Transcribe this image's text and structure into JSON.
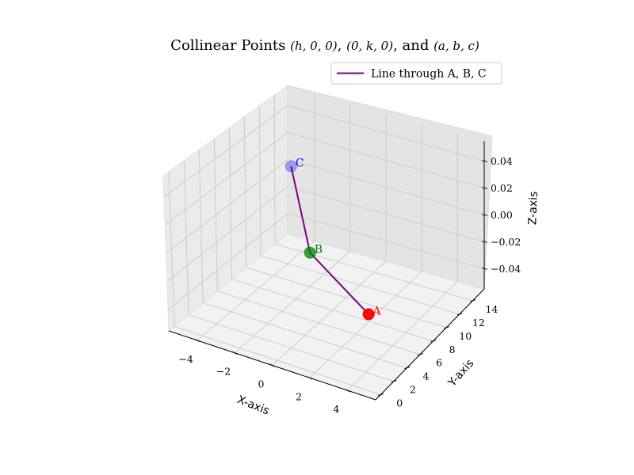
{
  "chart_data": {
    "type": "scatter3d",
    "title": {
      "prefix": "Collinear Points ",
      "math1": "(h, 0, 0)",
      "sep1": ", ",
      "math2": "(0, k, 0)",
      "sep2": ", and ",
      "math3": "(a, b, c)"
    },
    "xlabel": "X-axis",
    "ylabel": "Y-axis",
    "zlabel": "Z-axis",
    "xlim": [
      -5.5,
      5.5
    ],
    "ylim": [
      -0.75,
      15.75
    ],
    "zlim": [
      -0.055,
      0.055
    ],
    "xticks": [
      -4,
      -2,
      0,
      2,
      4
    ],
    "yticks": [
      0,
      2,
      4,
      6,
      8,
      10,
      12,
      14
    ],
    "zticks": [
      0.04,
      0.02,
      0.0,
      -0.02,
      -0.04
    ],
    "ztick_labels": [
      "0.04",
      "0.02",
      "0.00",
      "−0.02",
      "−0.04"
    ],
    "points": [
      {
        "label": "A",
        "x": 5,
        "y": 0,
        "z": 0,
        "color": "#ff0000"
      },
      {
        "label": "B",
        "x": 0,
        "y": 5,
        "z": 0,
        "color": "#008000"
      },
      {
        "label": "C",
        "x": -5,
        "y": 15,
        "z": 0,
        "color": "#0000ff"
      }
    ],
    "series": [
      {
        "name": "Line through A, B, C",
        "color": "#800080",
        "points": [
          [
            5,
            0,
            0
          ],
          [
            0,
            5,
            0
          ],
          [
            -5,
            15,
            0
          ]
        ]
      }
    ],
    "legend_position": "top-right",
    "grid": true
  }
}
